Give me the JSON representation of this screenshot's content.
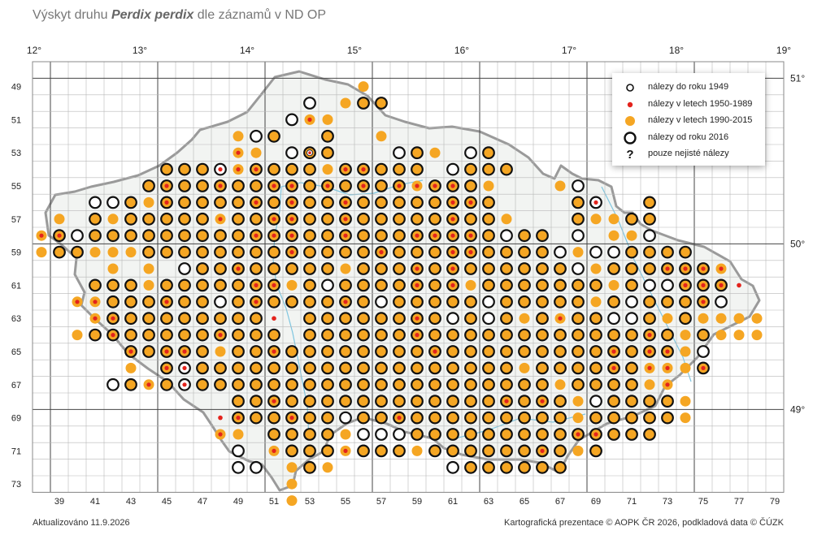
{
  "title_prefix": "Výskyt druhu",
  "title_species": "Perdix perdix",
  "title_suffix": "dle záznamů v ND OP",
  "updated": "Aktualizováno 11.9.2026",
  "credits": "Kartografická prezentace © AOPK ČR 2026, podkladová data © ČÚZK",
  "legend": [
    {
      "key": "pre1949",
      "label": "nálezy do roku 1949"
    },
    {
      "key": "y1950",
      "label": "nálezy v letech 1950-1989"
    },
    {
      "key": "y1990",
      "label": "nálezy v letech 1990-2015"
    },
    {
      "key": "y2016",
      "label": "nálezy od roku 2016"
    },
    {
      "key": "uncertain",
      "label": "pouze nejisté nálezy",
      "symbol": "?"
    }
  ],
  "colors": {
    "orange": "#f5a623",
    "red": "#e3231c",
    "black": "#111111",
    "grid": "#b8b8b8",
    "major": "#444444",
    "country": "#9a9a9a",
    "river": "#7fc6e0"
  },
  "lon_labels": [
    "12°",
    "13°",
    "14°",
    "15°",
    "16°",
    "17°",
    "18°",
    "19°"
  ],
  "lat_labels": [
    "51°",
    "50°",
    "49°"
  ],
  "row_labels": [
    "49",
    "51",
    "53",
    "55",
    "57",
    "59",
    "61",
    "63",
    "65",
    "67",
    "69",
    "71",
    "73"
  ],
  "col_labels": [
    "39",
    "41",
    "43",
    "45",
    "47",
    "49",
    "51",
    "53",
    "55",
    "57",
    "59",
    "61",
    "63",
    "65",
    "67",
    "69",
    "71",
    "73",
    "75",
    "77",
    "79"
  ],
  "grid": {
    "col_start": 38,
    "row_start": 48,
    "cols": 42,
    "rows": 26
  },
  "cells": {
    "49": {
      "56": "o"
    },
    "50": {
      "53": "w",
      "55": "o",
      "56": "b",
      "57": "b"
    },
    "51": {
      "52": "w",
      "53": "r",
      "54": "o"
    },
    "52": {
      "49": "o",
      "50": "w",
      "51": "b",
      "54": "b",
      "57": "o"
    },
    "53": {
      "49": "r",
      "50": "o",
      "52": "w",
      "53": "Y",
      "54": "b",
      "58": "w",
      "59": "b",
      "60": "o",
      "62": "w",
      "63": "b"
    },
    "54": {
      "45": "b",
      "46": "b",
      "47": "b",
      "48": "Z",
      "49": "r",
      "50": "B",
      "51": "b",
      "52": "b",
      "53": "b",
      "54": "o",
      "55": "B",
      "56": "B",
      "57": "b",
      "58": "b",
      "59": "b",
      "61": "w",
      "62": "b",
      "63": "b",
      "64": "b"
    },
    "55": {
      "44": "b",
      "45": "B",
      "46": "b",
      "47": "b",
      "48": "B",
      "49": "b",
      "50": "b",
      "51": "B",
      "52": "B",
      "53": "b",
      "54": "B",
      "55": "b",
      "56": "B",
      "57": "b",
      "58": "B",
      "59": "r",
      "60": "B",
      "61": "B",
      "62": "b",
      "63": "o",
      "67": "o",
      "68": "w"
    },
    "56": {
      "41": "w",
      "42": "w",
      "43": "b",
      "44": "o",
      "45": "B",
      "46": "b",
      "47": "b",
      "48": "b",
      "49": "b",
      "50": "B",
      "51": "b",
      "52": "B",
      "53": "b",
      "54": "b",
      "55": "B",
      "56": "b",
      "57": "b",
      "58": "b",
      "59": "b",
      "60": "b",
      "61": "B",
      "62": "B",
      "63": "b",
      "68": "b",
      "69": "Z",
      "72": "b"
    },
    "57": {
      "39": "o",
      "41": "b",
      "42": "o",
      "43": "b",
      "44": "b",
      "45": "b",
      "46": "b",
      "47": "b",
      "48": "r",
      "49": "b",
      "50": "b",
      "51": "B",
      "52": "B",
      "53": "b",
      "54": "b",
      "55": "B",
      "56": "b",
      "57": "b",
      "58": "b",
      "59": "b",
      "60": "b",
      "61": "B",
      "62": "b",
      "63": "b",
      "64": "o",
      "68": "b",
      "69": "o",
      "70": "o",
      "71": "b",
      "72": "b"
    },
    "58": {
      "38": "r",
      "39": "B",
      "40": "w",
      "41": "b",
      "42": "b",
      "43": "b",
      "44": "b",
      "45": "b",
      "46": "b",
      "47": "b",
      "48": "b",
      "49": "b",
      "50": "B",
      "51": "B",
      "52": "B",
      "53": "b",
      "54": "b",
      "55": "B",
      "56": "b",
      "57": "b",
      "58": "b",
      "59": "B",
      "60": "B",
      "61": "B",
      "62": "B",
      "63": "b",
      "64": "w",
      "65": "b",
      "66": "b",
      "68": "w",
      "70": "o",
      "71": "o",
      "72": "w"
    },
    "59": {
      "38": "o",
      "39": "b",
      "40": "b",
      "41": "o",
      "42": "o",
      "43": "o",
      "44": "b",
      "45": "b",
      "46": "b",
      "47": "b",
      "48": "b",
      "49": "b",
      "50": "b",
      "51": "b",
      "52": "B",
      "53": "b",
      "54": "b",
      "55": "b",
      "56": "b",
      "57": "B",
      "58": "b",
      "59": "b",
      "60": "b",
      "61": "B",
      "62": "B",
      "63": "b",
      "64": "b",
      "65": "b",
      "66": "b",
      "67": "w",
      "68": "o",
      "69": "w",
      "70": "w",
      "71": "b",
      "72": "b",
      "73": "b",
      "74": "b"
    },
    "60": {
      "42": "o",
      "44": "o",
      "46": "w",
      "47": "b",
      "48": "b",
      "49": "B",
      "50": "b",
      "51": "b",
      "52": "b",
      "53": "b",
      "54": "b",
      "55": "o",
      "56": "b",
      "57": "b",
      "58": "b",
      "59": "B",
      "60": "b",
      "61": "B",
      "62": "b",
      "63": "b",
      "64": "b",
      "65": "b",
      "66": "b",
      "67": "b",
      "68": "w",
      "69": "o",
      "70": "b",
      "71": "b",
      "72": "b",
      "73": "B",
      "74": "B",
      "75": "B",
      "76": "r"
    },
    "61": {
      "41": "b",
      "42": "b",
      "43": "b",
      "44": "o",
      "45": "b",
      "46": "b",
      "47": "b",
      "48": "b",
      "49": "b",
      "50": "B",
      "51": "B",
      "52": "o",
      "53": "b",
      "54": "w",
      "55": "b",
      "56": "b",
      "57": "b",
      "58": "b",
      "59": "B",
      "60": "b",
      "61": "B",
      "62": "o",
      "63": "b",
      "64": "b",
      "65": "b",
      "66": "b",
      "67": "b",
      "68": "b",
      "69": "b",
      "70": "o",
      "71": "b",
      "72": "w",
      "73": "w",
      "74": "B",
      "75": "B",
      "76": "B",
      "77": "d"
    },
    "62": {
      "40": "r",
      "41": "r",
      "42": "b",
      "43": "b",
      "44": "b",
      "45": "B",
      "46": "b",
      "47": "b",
      "48": "w",
      "49": "b",
      "50": "B",
      "51": "b",
      "52": "b",
      "53": "b",
      "54": "b",
      "55": "B",
      "56": "b",
      "57": "w",
      "58": "b",
      "59": "b",
      "60": "b",
      "61": "b",
      "62": "b",
      "63": "w",
      "64": "b",
      "65": "b",
      "66": "b",
      "67": "b",
      "68": "b",
      "69": "o",
      "70": "b",
      "71": "w",
      "72": "b",
      "73": "b",
      "74": "b",
      "75": "B",
      "76": "w"
    },
    "63": {
      "41": "r",
      "42": "B",
      "43": "b",
      "44": "b",
      "45": "b",
      "46": "b",
      "47": "b",
      "48": "b",
      "49": "b",
      "50": "b",
      "51": "d",
      "53": "b",
      "54": "b",
      "55": "b",
      "56": "b",
      "57": "b",
      "58": "b",
      "59": "B",
      "60": "b",
      "61": "w",
      "62": "b",
      "63": "w",
      "64": "b",
      "65": "o",
      "66": "b",
      "67": "r",
      "68": "b",
      "69": "b",
      "70": "w",
      "71": "w",
      "72": "b",
      "73": "o",
      "74": "b",
      "75": "o",
      "76": "o",
      "77": "o",
      "78": "o"
    },
    "64": {
      "40": "o",
      "41": "b",
      "42": "B",
      "43": "b",
      "44": "b",
      "45": "b",
      "46": "b",
      "47": "b",
      "48": "B",
      "49": "b",
      "50": "b",
      "51": "b",
      "53": "b",
      "54": "b",
      "55": "b",
      "56": "b",
      "57": "b",
      "58": "b",
      "59": "B",
      "60": "b",
      "61": "b",
      "62": "b",
      "63": "b",
      "64": "b",
      "65": "b",
      "66": "b",
      "67": "b",
      "68": "b",
      "69": "b",
      "70": "b",
      "71": "b",
      "72": "B",
      "73": "b",
      "74": "o",
      "75": "b",
      "76": "o",
      "77": "o",
      "78": "o"
    },
    "65": {
      "43": "B",
      "44": "b",
      "45": "B",
      "46": "B",
      "47": "b",
      "48": "o",
      "49": "b",
      "50": "b",
      "51": "B",
      "52": "b",
      "53": "b",
      "54": "b",
      "55": "b",
      "56": "b",
      "57": "b",
      "58": "b",
      "59": "b",
      "60": "B",
      "61": "b",
      "62": "b",
      "63": "b",
      "64": "b",
      "65": "b",
      "66": "b",
      "67": "b",
      "68": "b",
      "69": "b",
      "70": "B",
      "71": "b",
      "72": "B",
      "73": "B",
      "74": "o",
      "75": "w"
    },
    "66": {
      "43": "o",
      "45": "B",
      "46": "Z",
      "47": "b",
      "48": "b",
      "49": "b",
      "50": "b",
      "51": "b",
      "52": "b",
      "53": "b",
      "54": "b",
      "55": "b",
      "56": "b",
      "57": "b",
      "58": "b",
      "59": "b",
      "60": "b",
      "61": "b",
      "62": "b",
      "63": "b",
      "64": "b",
      "65": "o",
      "66": "b",
      "67": "b",
      "68": "b",
      "69": "b",
      "70": "B",
      "71": "b",
      "72": "r",
      "73": "r",
      "74": "o",
      "75": "B"
    },
    "67": {
      "42": "w",
      "43": "b",
      "44": "r",
      "45": "b",
      "46": "Z",
      "47": "b",
      "48": "b",
      "49": "b",
      "50": "b",
      "51": "b",
      "52": "b",
      "53": "b",
      "54": "b",
      "55": "b",
      "56": "b",
      "57": "b",
      "58": "b",
      "59": "b",
      "60": "b",
      "61": "b",
      "62": "b",
      "63": "b",
      "64": "b",
      "65": "b",
      "66": "b",
      "67": "o",
      "68": "b",
      "69": "b",
      "70": "b",
      "71": "b",
      "72": "o",
      "73": "r"
    },
    "68": {
      "49": "b",
      "50": "b",
      "51": "B",
      "52": "b",
      "53": "b",
      "54": "b",
      "55": "b",
      "56": "b",
      "57": "b",
      "58": "b",
      "59": "b",
      "60": "b",
      "61": "b",
      "62": "b",
      "63": "b",
      "64": "B",
      "65": "b",
      "66": "B",
      "67": "b",
      "68": "o",
      "69": "w",
      "70": "b",
      "71": "b",
      "72": "b",
      "73": "b",
      "74": "o"
    },
    "69": {
      "48": "d",
      "49": "B",
      "50": "b",
      "51": "b",
      "52": "B",
      "53": "b",
      "54": "b",
      "55": "w",
      "56": "b",
      "57": "b",
      "58": "B",
      "59": "b",
      "60": "b",
      "61": "b",
      "62": "b",
      "63": "b",
      "64": "b",
      "65": "b",
      "66": "b",
      "67": "b",
      "68": "o",
      "69": "b",
      "70": "b",
      "71": "b",
      "72": "b",
      "73": "b",
      "74": "o"
    },
    "70": {
      "48": "r",
      "49": "o",
      "51": "b",
      "52": "b",
      "53": "b",
      "54": "b",
      "55": "o",
      "56": "w",
      "57": "w",
      "58": "w",
      "59": "b",
      "60": "b",
      "61": "b",
      "62": "b",
      "63": "b",
      "64": "b",
      "65": "b",
      "66": "b",
      "67": "b",
      "68": "B",
      "69": "B",
      "70": "b",
      "71": "b",
      "72": "b"
    },
    "71": {
      "49": "w",
      "51": "r",
      "52": "b",
      "53": "b",
      "54": "b",
      "55": "r",
      "56": "b",
      "57": "b",
      "58": "b",
      "59": "o",
      "60": "b",
      "61": "b",
      "62": "b",
      "63": "b",
      "64": "b",
      "65": "b",
      "66": "B",
      "67": "b",
      "68": "o",
      "69": "b"
    },
    "72": {
      "49": "w",
      "50": "w",
      "52": "o",
      "53": "b",
      "54": "o",
      "61": "w",
      "62": "b",
      "63": "b",
      "64": "b",
      "65": "b",
      "66": "b",
      "67": "b"
    },
    "73": {
      "52": "o"
    },
    "74": {
      "52": "o"
    }
  }
}
